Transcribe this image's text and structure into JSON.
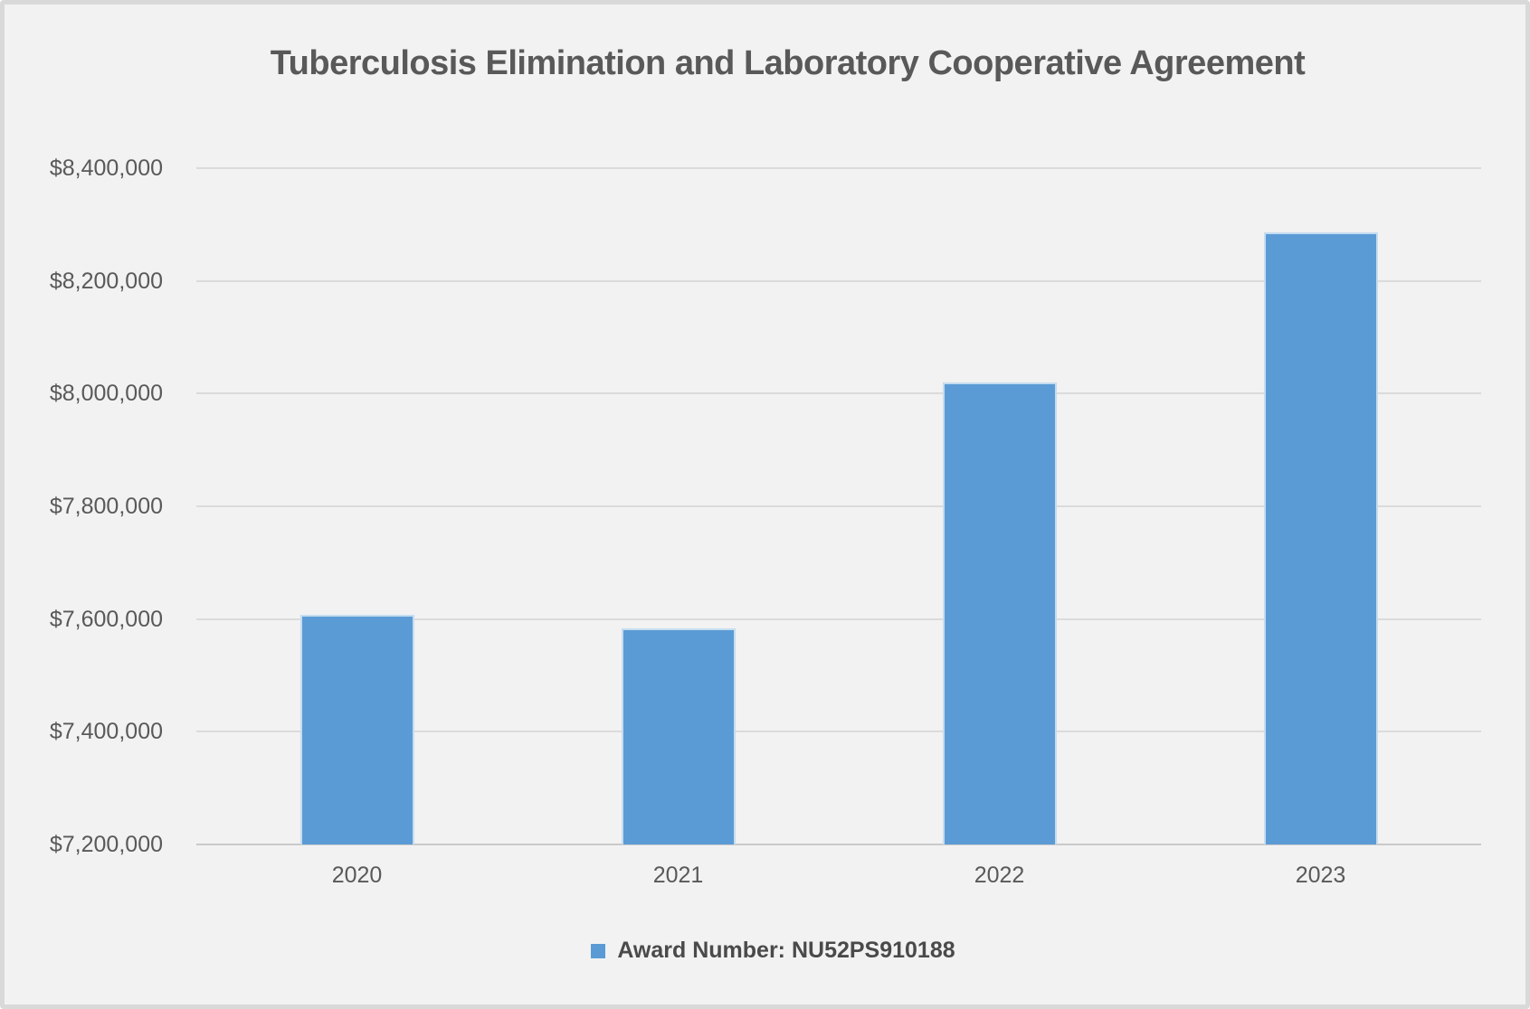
{
  "chart_data": {
    "type": "bar",
    "title": "Tuberculosis Elimination and Laboratory Cooperative Agreement",
    "categories": [
      "2020",
      "2021",
      "2022",
      "2023"
    ],
    "series": [
      {
        "name": "Award Number: NU52PS910188",
        "values": [
          7608000,
          7583000,
          8020000,
          8286000
        ]
      }
    ],
    "xlabel": "",
    "ylabel": "",
    "ylim": [
      7200000,
      8400000
    ],
    "ytick_interval": 200000,
    "yticks": [
      {
        "value": 8400000,
        "label": "$8,400,000"
      },
      {
        "value": 8200000,
        "label": "$8,200,000"
      },
      {
        "value": 8000000,
        "label": "$8,000,000"
      },
      {
        "value": 7800000,
        "label": "$7,800,000"
      },
      {
        "value": 7600000,
        "label": "$7,600,000"
      },
      {
        "value": 7400000,
        "label": "$7,400,000"
      },
      {
        "value": 7200000,
        "label": "$7,200,000"
      }
    ],
    "grid": true,
    "legend_position": "bottom",
    "colors": {
      "bar": "#5B9BD5",
      "background": "#F2F2F2",
      "border": "#D9D9D9",
      "title_text": "#595959",
      "axis_text": "#595959",
      "gridline": "#DBDBDB",
      "legend_text": "#4A4A4A"
    }
  }
}
